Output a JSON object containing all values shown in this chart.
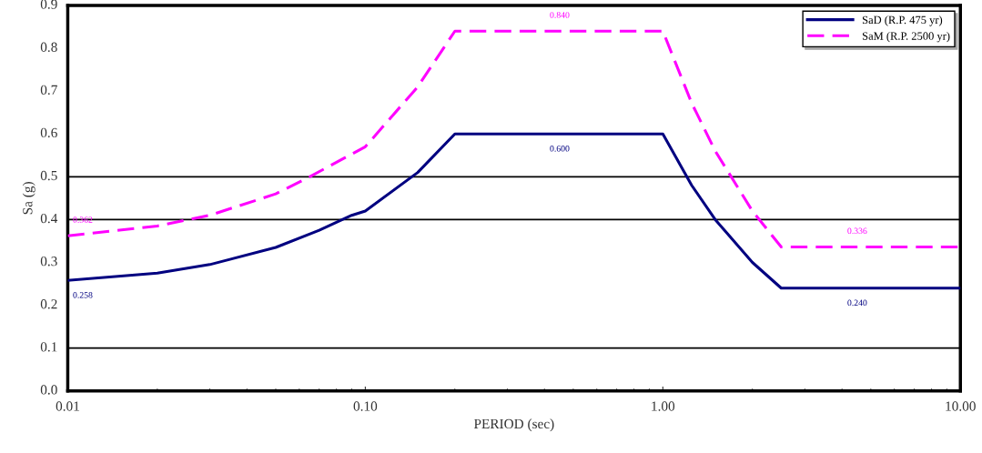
{
  "chart_data": {
    "type": "line",
    "xlabel": "PERIOD (sec)",
    "ylabel": "Sa (g)",
    "log": "x",
    "xlim": [
      0.01,
      10
    ],
    "xticks": [
      {
        "value": 0.01,
        "label": "0.01"
      },
      {
        "value": 0.1,
        "label": "0.10"
      },
      {
        "value": 1,
        "label": "1.00"
      },
      {
        "value": 10,
        "label": "10.00"
      }
    ],
    "ylim": [
      0,
      0.9
    ],
    "yticks": [
      {
        "value": 0,
        "label": "0.0"
      },
      {
        "value": 0.1,
        "label": "0.1"
      },
      {
        "value": 0.2,
        "label": "0.2"
      },
      {
        "value": 0.3,
        "label": "0.3"
      },
      {
        "value": 0.4,
        "label": "0.4"
      },
      {
        "value": 0.5,
        "label": "0.5"
      },
      {
        "value": 0.6,
        "label": "0.6"
      },
      {
        "value": 0.7,
        "label": "0.7"
      },
      {
        "value": 0.8,
        "label": "0.8"
      },
      {
        "value": 0.9,
        "label": "0.9"
      }
    ],
    "grid": false,
    "legend": "top right",
    "ref_lines": [
      {
        "axis": "y",
        "value": 0.1,
        "color": "#000000"
      },
      {
        "axis": "y",
        "value": 0.4,
        "color": "#000000"
      },
      {
        "axis": "y",
        "value": 0.5,
        "color": "#000000"
      }
    ],
    "series": [
      {
        "name": "SaD (R.P. 475 yr)",
        "color": "#000080",
        "line_style": "solid",
        "x": [
          0.01,
          0.02,
          0.03,
          0.05,
          0.07,
          0.09,
          0.1,
          0.15,
          0.2,
          0.45,
          1.0,
          1.25,
          1.5,
          2.0,
          2.5,
          4.5,
          10
        ],
        "values": [
          0.258,
          0.275,
          0.295,
          0.335,
          0.375,
          0.41,
          0.42,
          0.51,
          0.6,
          0.6,
          0.6,
          0.48,
          0.4,
          0.3,
          0.24,
          0.24,
          0.24
        ]
      },
      {
        "name": "SaM (R.P. 2500 yr)",
        "color": "#ff00ff",
        "line_style": "dashed",
        "x": [
          0.01,
          0.02,
          0.03,
          0.05,
          0.065,
          0.1,
          0.15,
          0.2,
          0.45,
          1.0,
          1.25,
          1.5,
          2.0,
          2.5,
          4.5,
          10
        ],
        "values": [
          0.362,
          0.385,
          0.41,
          0.46,
          0.5,
          0.57,
          0.71,
          0.84,
          0.84,
          0.84,
          0.672,
          0.56,
          0.42,
          0.336,
          0.336,
          0.336
        ]
      }
    ],
    "annotations": [
      {
        "text": "0.258",
        "x": 0.01,
        "y": 0.258
      },
      {
        "text": "0.600",
        "x": 0.45,
        "y": 0.6
      },
      {
        "text": "0.240",
        "x": 4.5,
        "y": 0.24
      },
      {
        "text": "0.362",
        "x": 0.01,
        "y": 0.362
      },
      {
        "text": "0.840",
        "x": 0.45,
        "y": 0.84
      },
      {
        "text": "0.336",
        "x": 4.5,
        "y": 0.336
      }
    ]
  }
}
